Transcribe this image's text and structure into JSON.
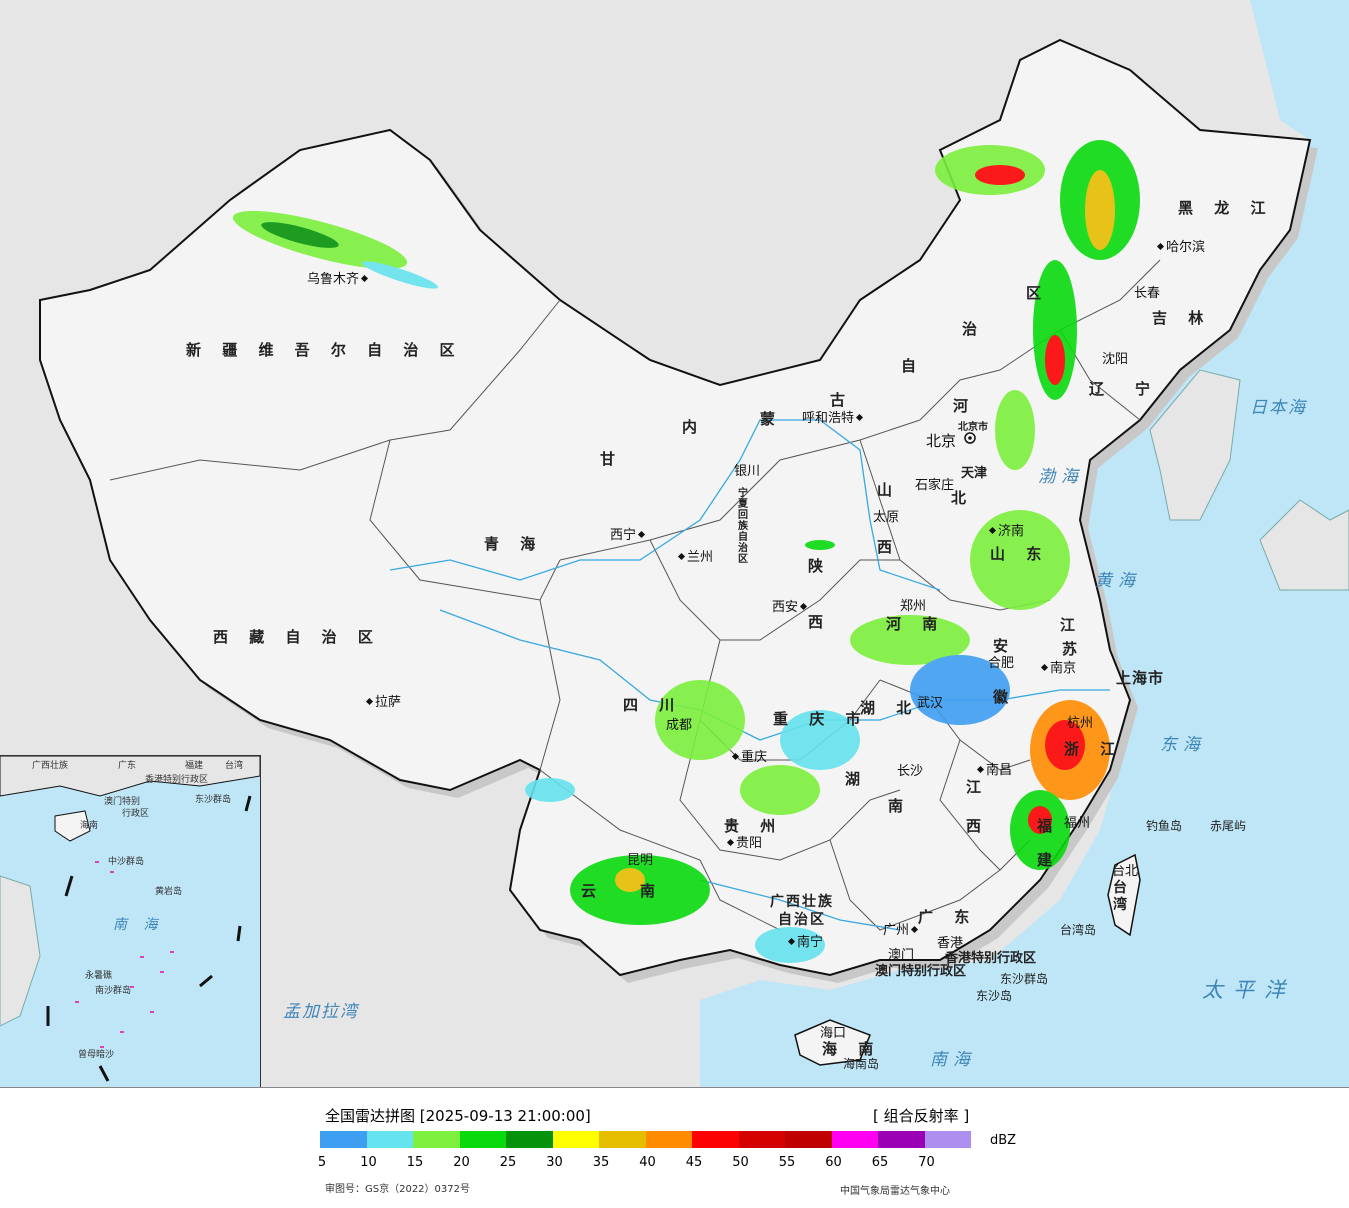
{
  "map": {
    "provinces": [
      {
        "id": "xinjiang",
        "name": "新 疆 维 吾 尔 自 治 区"
      },
      {
        "id": "xizang",
        "name": "西 藏 自 治 区"
      },
      {
        "id": "qinghai",
        "name": "青   海"
      },
      {
        "id": "gansu",
        "name": "甘"
      },
      {
        "id": "neimenggu_1",
        "name": "内"
      },
      {
        "id": "neimenggu_2",
        "name": "蒙"
      },
      {
        "id": "neimenggu_3",
        "name": "古"
      },
      {
        "id": "neimenggu_4",
        "name": "自"
      },
      {
        "id": "neimenggu_5",
        "name": "治"
      },
      {
        "id": "neimenggu_6",
        "name": "区"
      },
      {
        "id": "heilongjiang",
        "name": "黑 龙 江"
      },
      {
        "id": "jilin",
        "name": "吉 林"
      },
      {
        "id": "liaoning_1",
        "name": "辽"
      },
      {
        "id": "liaoning_2",
        "name": "宁"
      },
      {
        "id": "hebei_1",
        "name": "河"
      },
      {
        "id": "hebei_2",
        "name": "北"
      },
      {
        "id": "shanxi_1",
        "name": "山"
      },
      {
        "id": "shanxi_2",
        "name": "西"
      },
      {
        "id": "shandong",
        "name": "山 东"
      },
      {
        "id": "henan",
        "name": "河 南"
      },
      {
        "id": "jiangsu_1",
        "name": "江"
      },
      {
        "id": "jiangsu_2",
        "name": "苏"
      },
      {
        "id": "anhui_1",
        "name": "安"
      },
      {
        "id": "anhui_2",
        "name": "徽"
      },
      {
        "id": "hubei",
        "name": "湖  北"
      },
      {
        "id": "hunan_1",
        "name": "湖"
      },
      {
        "id": "hunan_2",
        "name": "南"
      },
      {
        "id": "jiangxi_1",
        "name": "江"
      },
      {
        "id": "jiangxi_2",
        "name": "西"
      },
      {
        "id": "zhejiang",
        "name": "浙 江"
      },
      {
        "id": "fujian_1",
        "name": "福"
      },
      {
        "id": "fujian_2",
        "name": "建"
      },
      {
        "id": "sichuan",
        "name": "四  川"
      },
      {
        "id": "chongqing",
        "name": "重 庆 市"
      },
      {
        "id": "guizhou",
        "name": "贵 州"
      },
      {
        "id": "yunnan_1",
        "name": "云"
      },
      {
        "id": "yunnan_2",
        "name": "南"
      },
      {
        "id": "guangxi",
        "name": "广西壮族 自治区"
      },
      {
        "id": "guangdong",
        "name": "广  东"
      },
      {
        "id": "hainan",
        "name": "海 南"
      },
      {
        "id": "shaanxi_1",
        "name": "陕"
      },
      {
        "id": "shaanxi_2",
        "name": "西"
      },
      {
        "id": "ningxia",
        "name": "宁夏回族自治区"
      },
      {
        "id": "taiwan",
        "name": "台 湾"
      },
      {
        "id": "shanghai",
        "name": "上海市"
      },
      {
        "id": "tianjin",
        "name": "天津"
      },
      {
        "id": "beijing",
        "name": "北京市"
      },
      {
        "id": "hongkong",
        "name": "香港特别行政区"
      },
      {
        "id": "macau",
        "name": "澳门特别行政区"
      }
    ],
    "cities": [
      {
        "id": "urumqi",
        "name": "乌鲁木齐"
      },
      {
        "id": "lhasa",
        "name": "拉萨"
      },
      {
        "id": "xining",
        "name": "西宁"
      },
      {
        "id": "lanzhou",
        "name": "兰州"
      },
      {
        "id": "yinchuan",
        "name": "银川"
      },
      {
        "id": "hohhot",
        "name": "呼和浩特"
      },
      {
        "id": "harbin",
        "name": "哈尔滨"
      },
      {
        "id": "changchun",
        "name": "长春"
      },
      {
        "id": "shenyang",
        "name": "沈阳"
      },
      {
        "id": "beijing",
        "name": "北京"
      },
      {
        "id": "shijiazhuang",
        "name": "石家庄"
      },
      {
        "id": "taiyuan",
        "name": "太原"
      },
      {
        "id": "jinan",
        "name": "济南"
      },
      {
        "id": "zhengzhou",
        "name": "郑州"
      },
      {
        "id": "xian",
        "name": "西安"
      },
      {
        "id": "hefei",
        "name": "合肥"
      },
      {
        "id": "nanjing",
        "name": "南京"
      },
      {
        "id": "hangzhou",
        "name": "杭州"
      },
      {
        "id": "wuhan",
        "name": "武汉"
      },
      {
        "id": "changsha",
        "name": "长沙"
      },
      {
        "id": "nanchang",
        "name": "南昌"
      },
      {
        "id": "fuzhou",
        "name": "福州"
      },
      {
        "id": "taipei",
        "name": "台北"
      },
      {
        "id": "chengdu",
        "name": "成都"
      },
      {
        "id": "chongqing",
        "name": "重庆"
      },
      {
        "id": "guiyang",
        "name": "贵阳"
      },
      {
        "id": "kunming",
        "name": "昆明"
      },
      {
        "id": "nanning",
        "name": "南宁"
      },
      {
        "id": "guangzhou",
        "name": "广州"
      },
      {
        "id": "hongkong",
        "name": "香港"
      },
      {
        "id": "macau",
        "name": "澳门"
      },
      {
        "id": "haikou",
        "name": "海口"
      }
    ],
    "seas": [
      {
        "id": "bohai",
        "name": "渤海"
      },
      {
        "id": "huanghai",
        "name": "黄海"
      },
      {
        "id": "donghai",
        "name": "东海"
      },
      {
        "id": "nanhai",
        "name": "南海"
      },
      {
        "id": "riben",
        "name": "日本海"
      },
      {
        "id": "taipingyang",
        "name": "太平洋"
      },
      {
        "id": "mengjiala",
        "name": "孟加拉湾"
      }
    ],
    "islands": [
      {
        "id": "diaoyu",
        "name": "钓鱼岛"
      },
      {
        "id": "chiwei",
        "name": "赤尾屿"
      },
      {
        "id": "taiwandao",
        "name": "台湾岛"
      },
      {
        "id": "dongsha_qd",
        "name": "东沙群岛"
      },
      {
        "id": "dongsha_d",
        "name": "东沙岛"
      },
      {
        "id": "hainandao",
        "name": "海南岛"
      }
    ],
    "inset": {
      "sea_label": "南 海",
      "labels": [
        "广西壮族",
        "广东",
        "福建",
        "台湾",
        "海南",
        "澳门特别",
        "香港特别行政区",
        "行政区",
        "东沙群岛",
        "中沙群岛",
        "黄岩岛",
        "南沙群岛",
        "永暑礁",
        "曾母暗沙"
      ]
    }
  },
  "legend": {
    "title": "全国雷达拼图 [2025-09-13 21:00:00]",
    "product": "[ 组合反射率 ]",
    "unit": "dBZ",
    "ticks": [
      "5",
      "10",
      "15",
      "20",
      "25",
      "30",
      "35",
      "40",
      "45",
      "50",
      "55",
      "60",
      "65",
      "70"
    ],
    "colors": [
      "#3e9ef0",
      "#65e3ee",
      "#7cf03c",
      "#09da0e",
      "#06920a",
      "#fefe00",
      "#e6be00",
      "#ff8c00",
      "#fc0200",
      "#d50000",
      "#c00000",
      "#ff00f0",
      "#9a00b4",
      "#ad8ff0"
    ],
    "approval": "审图号：GS京（2022）0372号",
    "source": "中国气象局雷达气象中心"
  }
}
